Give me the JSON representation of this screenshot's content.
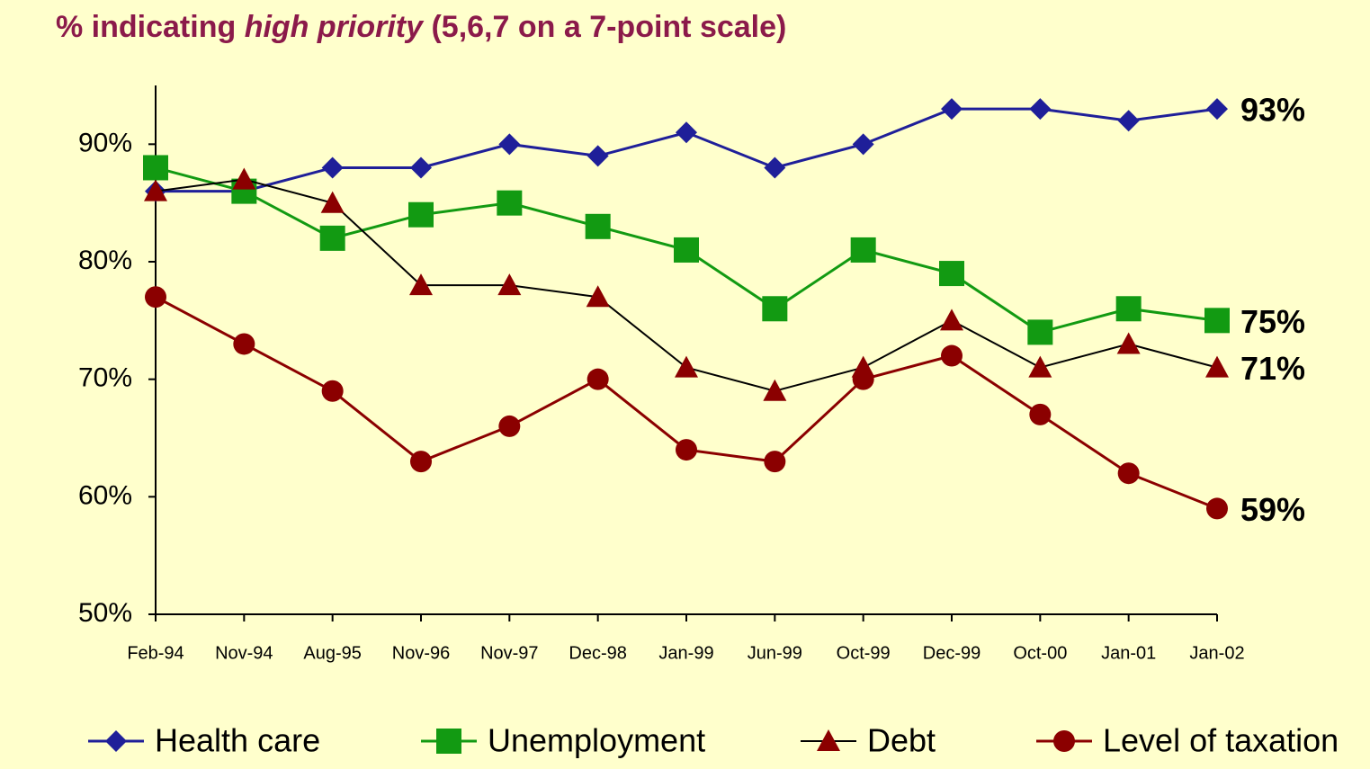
{
  "chart_data": {
    "type": "line",
    "title": [
      "% indicating ",
      "high priority",
      " (5,6,7 on a 7-point scale)"
    ],
    "title_color": "#8b1a4a",
    "categories": [
      "Feb-94",
      "Nov-94",
      "Aug-95",
      "Nov-96",
      "Nov-97",
      "Dec-98",
      "Jan-99",
      "Jun-99",
      "Oct-99",
      "Dec-99",
      "Oct-00",
      "Jan-01",
      "Jan-02"
    ],
    "ylim": [
      50,
      95
    ],
    "yticks": [
      {
        "value": 50,
        "label": "50%"
      },
      {
        "value": 60,
        "label": "60%"
      },
      {
        "value": 70,
        "label": "70%"
      },
      {
        "value": 80,
        "label": "80%"
      },
      {
        "value": 90,
        "label": "90%"
      }
    ],
    "series": [
      {
        "name": "Health care",
        "color": "#1f1f99",
        "marker": "diamond",
        "marker_color": "#1f1f99",
        "values": [
          86,
          86,
          88,
          88,
          90,
          89,
          91,
          88,
          90,
          93,
          93,
          92,
          93
        ],
        "end_label": "93%"
      },
      {
        "name": "Unemployment",
        "color": "#129a12",
        "marker": "square",
        "marker_color": "#129a12",
        "values": [
          88,
          86,
          82,
          84,
          85,
          83,
          81,
          76,
          81,
          79,
          74,
          76,
          75
        ],
        "end_label": "75%"
      },
      {
        "name": "Debt",
        "color": "#000000",
        "marker": "triangle",
        "marker_color": "#8b0000",
        "values": [
          86,
          87,
          85,
          78,
          78,
          77,
          71,
          69,
          71,
          75,
          71,
          73,
          71
        ],
        "end_label": "71%"
      },
      {
        "name": "Level of taxation",
        "color": "#8b0000",
        "marker": "circle",
        "marker_color": "#8b0000",
        "values": [
          77,
          73,
          69,
          63,
          66,
          70,
          64,
          63,
          70,
          72,
          67,
          62,
          59
        ],
        "end_label": "59%"
      }
    ],
    "legend": "bottom"
  }
}
